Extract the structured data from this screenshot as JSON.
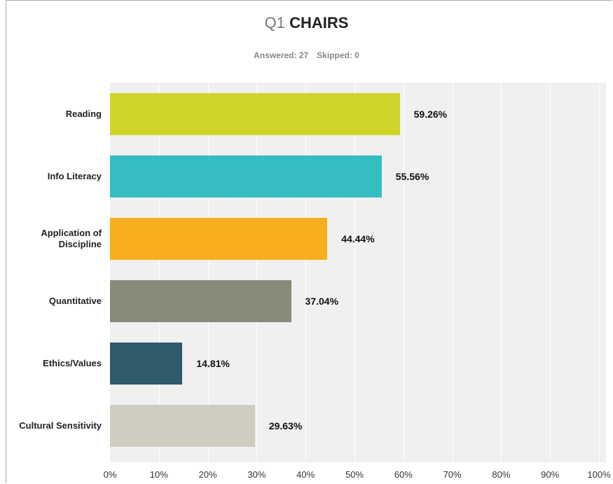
{
  "chart_data": {
    "type": "bar",
    "orientation": "horizontal",
    "question": "Q1",
    "title": "CHAIRS",
    "answered": "Answered: 27",
    "skipped": "Skipped: 0",
    "categories": [
      "Reading",
      "Info Literacy",
      "Application of Discipline",
      "Quantitative",
      "Ethics/Values",
      "Cultural Sensitivity"
    ],
    "values": [
      59.26,
      55.56,
      44.44,
      37.04,
      14.81,
      29.63
    ],
    "value_labels": [
      "59.26%",
      "55.56%",
      "44.44%",
      "37.04%",
      "14.81%",
      "29.63%"
    ],
    "colors": [
      "#cfd42a",
      "#35bec1",
      "#f7ae1e",
      "#8a8a79",
      "#2e5c68",
      "#cfcdc0"
    ],
    "xlim": [
      0,
      100
    ],
    "xticks": [
      {
        "value": 0,
        "label": "0%"
      },
      {
        "value": 10,
        "label": "10%"
      },
      {
        "value": 20,
        "label": "20%"
      },
      {
        "value": 30,
        "label": "30%"
      },
      {
        "value": 40,
        "label": "40%"
      },
      {
        "value": 50,
        "label": "50%"
      },
      {
        "value": 60,
        "label": "60%"
      },
      {
        "value": 70,
        "label": "70%"
      },
      {
        "value": 80,
        "label": "80%"
      },
      {
        "value": 90,
        "label": "90%"
      },
      {
        "value": 100,
        "label": "100%"
      }
    ],
    "grid": true
  }
}
